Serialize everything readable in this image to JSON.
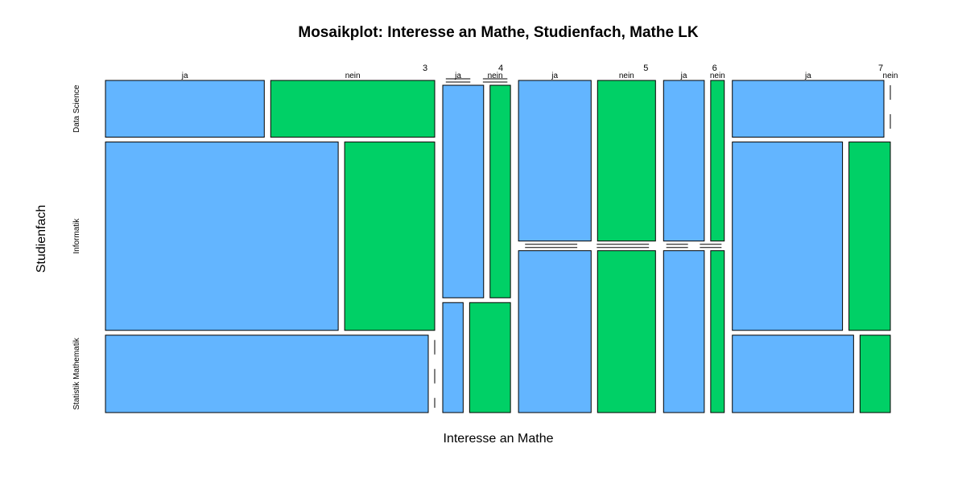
{
  "chart_data": {
    "type": "mosaic",
    "title": "Mosaikplot: Interesse an Mathe, Studienfach, Mathe LK",
    "xlabel": "Interesse an Mathe",
    "ylabel": "Studienfach",
    "x_levels": [
      "3",
      "4",
      "5",
      "6",
      "7"
    ],
    "y_levels": [
      "Data Science",
      "Informatik",
      "Statistik Mathematik"
    ],
    "z_levels": [
      "ja",
      "nein"
    ],
    "colors": {
      "ja": "#63B5FF",
      "nein": "#00D066"
    },
    "x_proportions": [
      0.423,
      0.087,
      0.176,
      0.078,
      0.203
    ],
    "cells": [
      {
        "x": "3",
        "y": "Data Science",
        "y_share": 0.176,
        "z_shares": [
          0.492,
          0.508
        ]
      },
      {
        "x": "3",
        "y": "Informatik",
        "y_share": 0.584,
        "z_shares": [
          0.721,
          0.279
        ]
      },
      {
        "x": "3",
        "y": "Statistik Mathematik",
        "y_share": 0.24,
        "z_shares": [
          1.0,
          0.0
        ]
      },
      {
        "x": "4",
        "y": "Data Science",
        "y_share": 0.0,
        "z_shares": [
          0.0,
          0.0
        ]
      },
      {
        "x": "4",
        "y": "Informatik",
        "y_share": 0.659,
        "z_shares": [
          0.667,
          0.333
        ]
      },
      {
        "x": "4",
        "y": "Statistik Mathematik",
        "y_share": 0.341,
        "z_shares": [
          0.333,
          0.667
        ]
      },
      {
        "x": "5",
        "y": "Data Science",
        "y_share": 0.498,
        "z_shares": [
          0.556,
          0.444
        ]
      },
      {
        "x": "5",
        "y": "Informatik",
        "y_share": 0.0,
        "z_shares": [
          0.0,
          0.0
        ]
      },
      {
        "x": "5",
        "y": "Statistik Mathematik",
        "y_share": 0.502,
        "z_shares": [
          0.556,
          0.444
        ]
      },
      {
        "x": "6",
        "y": "Data Science",
        "y_share": 0.498,
        "z_shares": [
          0.75,
          0.25
        ]
      },
      {
        "x": "6",
        "y": "Informatik",
        "y_share": 0.0,
        "z_shares": [
          0.0,
          0.0
        ]
      },
      {
        "x": "6",
        "y": "Statistik Mathematik",
        "y_share": 0.502,
        "z_shares": [
          0.75,
          0.25
        ]
      },
      {
        "x": "7",
        "y": "Data Science",
        "y_share": 0.176,
        "z_shares": [
          1.0,
          0.0
        ]
      },
      {
        "x": "7",
        "y": "Informatik",
        "y_share": 0.584,
        "z_shares": [
          0.727,
          0.273
        ]
      },
      {
        "x": "7",
        "y": "Statistik Mathematik",
        "y_share": 0.24,
        "z_shares": [
          0.8,
          0.2
        ]
      }
    ]
  }
}
